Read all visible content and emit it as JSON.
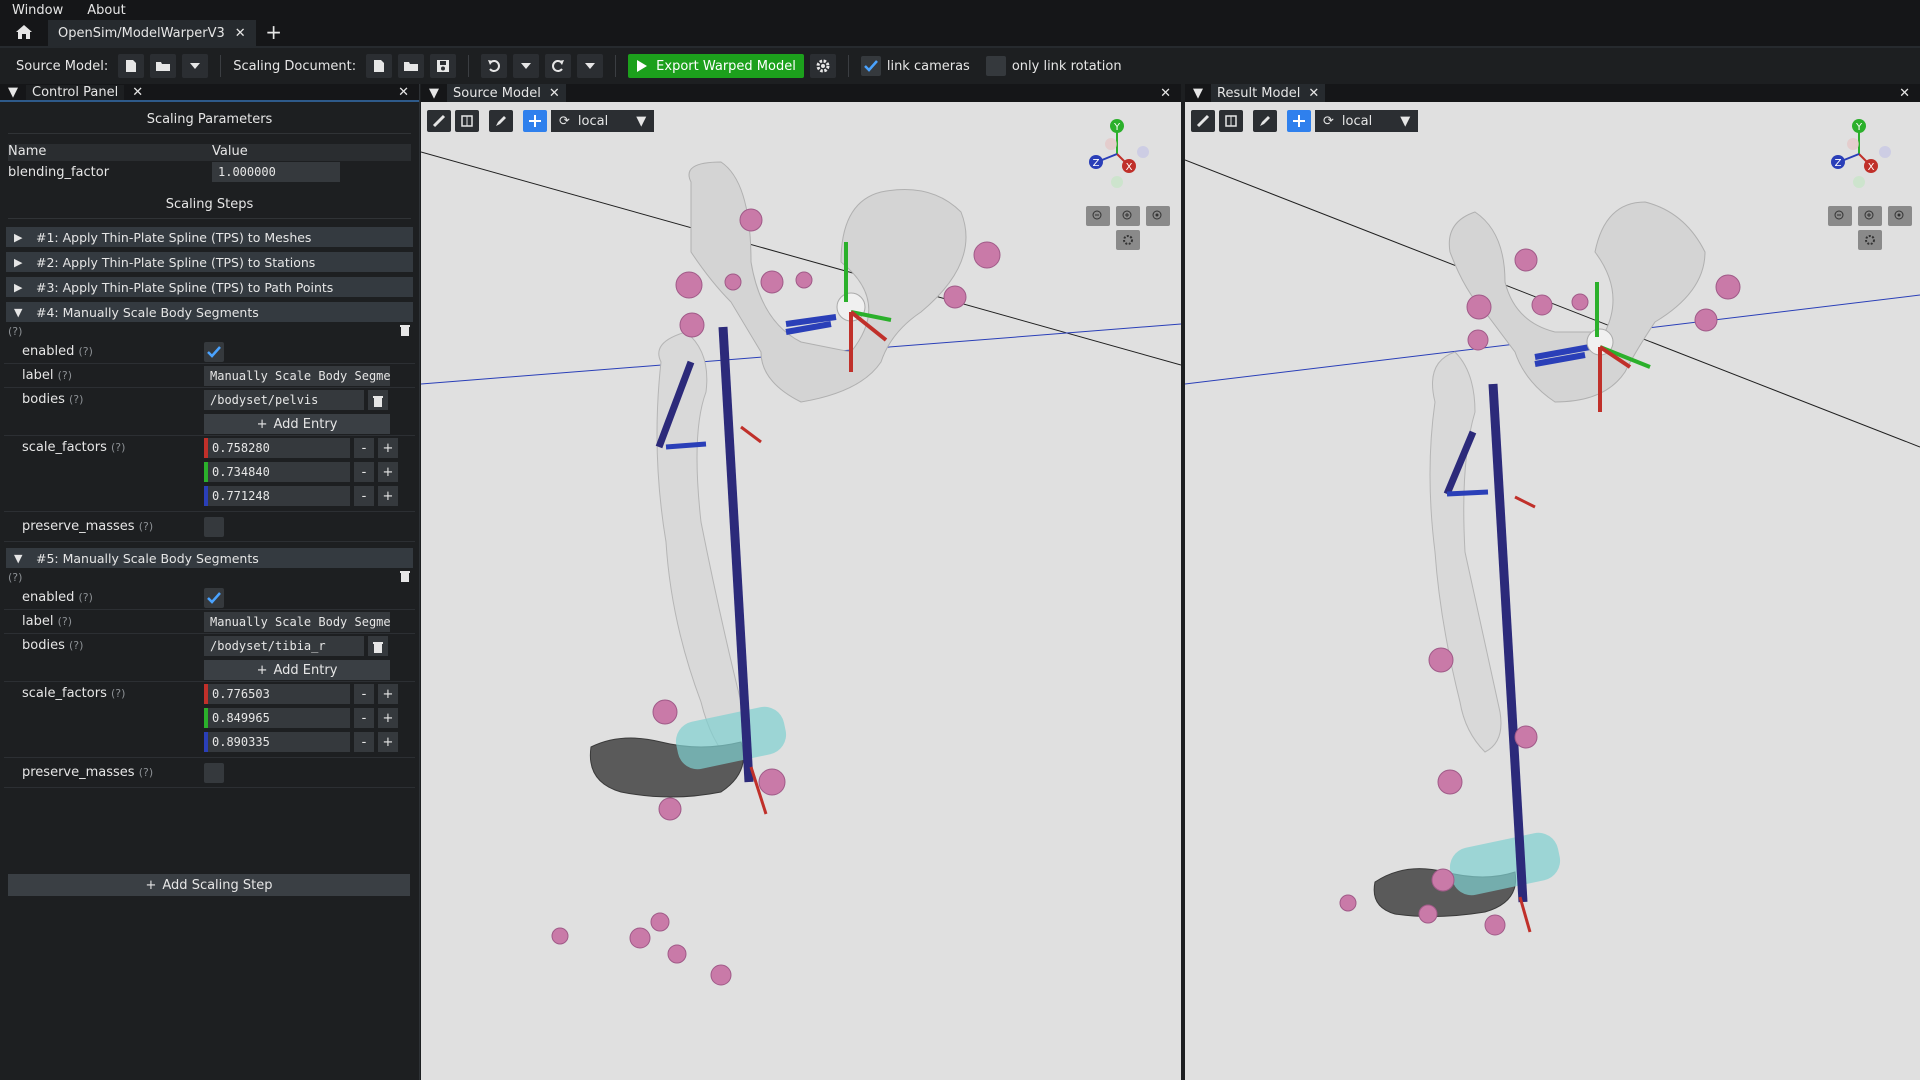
{
  "menubar": {
    "items": [
      "Window",
      "About"
    ]
  },
  "tabs": {
    "document": "OpenSim/ModelWarperV3",
    "add": "+"
  },
  "toolbar": {
    "source_model_label": "Source Model:",
    "scaling_document_label": "Scaling Document:",
    "export_label": "Export Warped Model",
    "link_cameras_label": "link cameras",
    "link_cameras_checked": true,
    "only_link_rotation_label": "only link rotation",
    "only_link_rotation_checked": false
  },
  "control_panel": {
    "title": "Control Panel",
    "scaling_parameters_title": "Scaling Parameters",
    "param_headers": {
      "name": "Name",
      "value": "Value"
    },
    "params": [
      {
        "name": "blending_factor",
        "value": "1.000000"
      }
    ],
    "scaling_steps_title": "Scaling Steps",
    "collapsed_steps": [
      "#1: Apply Thin-Plate Spline (TPS) to Meshes",
      "#2: Apply Thin-Plate Spline (TPS) to Stations",
      "#3: Apply Thin-Plate Spline (TPS) to Path Points"
    ],
    "help": "(?)",
    "expanded_steps": [
      {
        "title": "#4: Manually Scale Body Segments",
        "enabled_label": "enabled",
        "label_label": "label",
        "label_value": "Manually Scale Body Segments",
        "bodies_label": "bodies",
        "bodies_value": "/bodyset/pelvis",
        "add_entry": "Add Entry",
        "scale_factors_label": "scale_factors",
        "scale_factors": [
          "0.758280",
          "0.734840",
          "0.771248"
        ],
        "preserve_masses_label": "preserve_masses"
      },
      {
        "title": "#5: Manually Scale Body Segments",
        "enabled_label": "enabled",
        "label_label": "label",
        "label_value": "Manually Scale Body Segments",
        "bodies_label": "bodies",
        "bodies_value": "/bodyset/tibia_r",
        "add_entry": "Add Entry",
        "scale_factors_label": "scale_factors",
        "scale_factors": [
          "0.776503",
          "0.849965",
          "0.890335"
        ],
        "preserve_masses_label": "preserve_masses"
      }
    ],
    "add_scaling_step": "Add Scaling Step"
  },
  "source_viewport": {
    "title": "Source Model",
    "frame_select": "local"
  },
  "result_viewport": {
    "title": "Result Model",
    "frame_select": "local"
  },
  "gizmo": {
    "x": "X",
    "y": "Y",
    "z": "Z"
  },
  "colors": {
    "accent_blue": "#2f80ed",
    "export_green": "#1ca01c",
    "axis_x": "#c0302a",
    "axis_y": "#2bb02b",
    "axis_z": "#2a3fb8",
    "marker": "#c97aa8",
    "bone": "#d6d6d6",
    "muscle": "#2c2a7a",
    "wrap": "#7fd0d0"
  }
}
